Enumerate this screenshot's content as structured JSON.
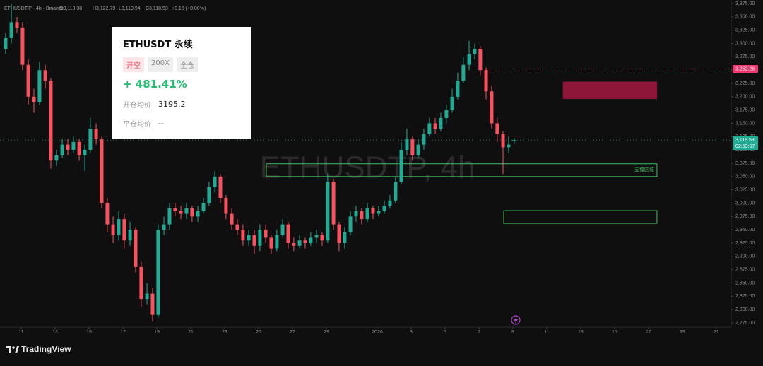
{
  "chart_data": {
    "type": "candlestick",
    "symbol_info": "ETHUSDT.P · 4h · Binance",
    "ohlc_legend": {
      "open": "O3,118.38",
      "high": "H3,122.79",
      "low": "L3,110.94",
      "close": "C3,118.53",
      "change": "+0.15 (+0.00%)"
    },
    "watermark": "ETHUSDTP, 4h",
    "brand": "TradingView",
    "up_color": "#22ab94",
    "down_color": "#f7525f",
    "grid": false,
    "x": [
      10.08,
      10.42,
      10.75,
      11.08,
      11.42,
      11.75,
      12.08,
      12.42,
      12.75,
      13.08,
      13.42,
      13.75,
      14.08,
      14.42,
      14.75,
      15.08,
      15.42,
      15.75,
      16.08,
      16.42,
      16.75,
      17.08,
      17.42,
      17.75,
      18.08,
      18.42,
      18.75,
      19.08,
      19.42,
      19.75,
      20.08,
      20.42,
      20.75,
      21.08,
      21.42,
      21.75,
      22.08,
      22.42,
      22.75,
      23.08,
      23.42,
      23.75,
      24.08,
      24.42,
      24.75,
      25.08,
      25.42,
      25.75,
      26.08,
      26.42,
      26.75,
      27.08,
      27.42,
      27.75,
      28.08,
      28.42,
      28.75,
      29.08,
      29.42,
      29.75,
      30.08,
      30.42,
      30.75,
      31.08,
      31.42,
      31.75,
      32.08,
      32.42,
      32.75,
      33.08,
      33.42,
      33.75,
      34.08,
      34.42,
      34.75,
      35.08,
      35.42,
      35.75,
      36.08,
      36.42,
      36.75,
      37.08,
      37.42,
      37.75,
      38.08,
      38.42,
      38.75,
      39.08,
      39.42,
      39.75,
      40.08
    ],
    "open": [
      3290,
      3310,
      3340,
      3330,
      3260,
      3200,
      3190,
      3250,
      3230,
      3080,
      3090,
      3110,
      3100,
      3115,
      3090,
      3100,
      3140,
      3120,
      3000,
      2960,
      2940,
      2970,
      2930,
      2950,
      2880,
      2820,
      2830,
      2790,
      2950,
      2960,
      2990,
      2985,
      2980,
      2990,
      2975,
      2985,
      3000,
      3030,
      3050,
      3010,
      2980,
      2960,
      2950,
      2930,
      2940,
      2920,
      2950,
      2935,
      2915,
      2940,
      2960,
      2925,
      2920,
      2930,
      2925,
      2935,
      2940,
      2930,
      3040,
      2960,
      2925,
      2945,
      2975,
      2985,
      2970,
      2990,
      2980,
      2985,
      2995,
      3005,
      3040,
      3100,
      3120,
      3090,
      3110,
      3130,
      3150,
      3140,
      3160,
      3175,
      3200,
      3230,
      3260,
      3280,
      3290,
      3250,
      3210,
      3150,
      3130,
      3105,
      3118.38
    ],
    "high": [
      3320,
      3375,
      3350,
      3340,
      3270,
      3215,
      3265,
      3260,
      3235,
      3100,
      3120,
      3120,
      3125,
      3120,
      3110,
      3160,
      3150,
      3125,
      3010,
      2975,
      2985,
      2980,
      2965,
      2955,
      2890,
      2850,
      2840,
      2960,
      2975,
      3000,
      3000,
      2995,
      3000,
      2995,
      2995,
      3010,
      3040,
      3060,
      3055,
      3015,
      2990,
      2970,
      2960,
      2950,
      2950,
      2960,
      2960,
      2940,
      2950,
      2970,
      2965,
      2935,
      2940,
      2935,
      2945,
      2950,
      2945,
      3055,
      3045,
      2965,
      2955,
      2985,
      2995,
      2990,
      3000,
      2995,
      2995,
      3005,
      3015,
      3050,
      3115,
      3140,
      3125,
      3120,
      3140,
      3160,
      3160,
      3170,
      3185,
      3215,
      3245,
      3275,
      3305,
      3300,
      3295,
      3255,
      3220,
      3160,
      3135,
      3125,
      3122.79
    ],
    "low": [
      3280,
      3300,
      3320,
      3250,
      3185,
      3170,
      3185,
      3215,
      3065,
      3070,
      3085,
      3090,
      3095,
      3080,
      3060,
      3095,
      3110,
      2990,
      2945,
      2925,
      2930,
      2915,
      2920,
      2870,
      2805,
      2810,
      2778,
      2785,
      2940,
      2950,
      2975,
      2970,
      2970,
      2965,
      2965,
      2980,
      2995,
      3020,
      3000,
      2970,
      2950,
      2940,
      2920,
      2920,
      2905,
      2910,
      2925,
      2905,
      2910,
      2935,
      2915,
      2910,
      2915,
      2915,
      2920,
      2925,
      2920,
      2925,
      2950,
      2910,
      2915,
      2940,
      2965,
      2960,
      2965,
      2970,
      2975,
      2980,
      2990,
      3000,
      3035,
      3090,
      3080,
      3085,
      3100,
      3125,
      3130,
      3135,
      3150,
      3170,
      3195,
      3225,
      3250,
      3270,
      3240,
      3195,
      3140,
      3115,
      3055,
      3095,
      3110.94
    ],
    "close": [
      3310,
      3340,
      3330,
      3260,
      3200,
      3190,
      3250,
      3230,
      3080,
      3090,
      3110,
      3100,
      3115,
      3090,
      3100,
      3140,
      3120,
      3000,
      2960,
      2940,
      2970,
      2930,
      2950,
      2880,
      2820,
      2830,
      2790,
      2950,
      2960,
      2990,
      2985,
      2980,
      2990,
      2975,
      2985,
      3000,
      3030,
      3050,
      3010,
      2980,
      2960,
      2950,
      2930,
      2940,
      2920,
      2950,
      2935,
      2915,
      2940,
      2960,
      2925,
      2920,
      2930,
      2925,
      2935,
      2940,
      2930,
      3040,
      2960,
      2925,
      2945,
      2975,
      2985,
      2970,
      2990,
      2980,
      2985,
      2995,
      3005,
      3040,
      3100,
      3120,
      3090,
      3110,
      3130,
      3150,
      3140,
      3160,
      3175,
      3200,
      3230,
      3260,
      3280,
      3290,
      3250,
      3210,
      3150,
      3130,
      3105,
      3110,
      3118.53
    ],
    "xlim": [
      9.75,
      52.67
    ],
    "xticks": [
      11,
      13,
      15,
      17,
      19,
      21,
      23,
      25,
      27,
      29,
      {
        "value": 32,
        "label": "2026"
      },
      {
        "value": 34,
        "label": "3"
      },
      {
        "value": 36,
        "label": "5"
      },
      {
        "value": 38,
        "label": "7"
      },
      {
        "value": 40,
        "label": "9"
      },
      {
        "value": 42,
        "label": "11"
      },
      {
        "value": 44,
        "label": "13"
      },
      {
        "value": 46,
        "label": "15"
      },
      {
        "value": 48,
        "label": "17"
      },
      {
        "value": 50,
        "label": "19"
      },
      {
        "value": 52,
        "label": "21"
      }
    ],
    "ylim": [
      2775,
      3375
    ],
    "yticks": [
      {
        "value": 2775,
        "label": "2,775.00"
      },
      {
        "value": 2800,
        "label": "2,800.00"
      },
      {
        "value": 2825,
        "label": "2,825.00"
      },
      {
        "value": 2850,
        "label": "2,850.00"
      },
      {
        "value": 2875,
        "label": "2,875.00"
      },
      {
        "value": 2900,
        "label": "2,900.00"
      },
      {
        "value": 2925,
        "label": "2,925.00"
      },
      {
        "value": 2950,
        "label": "2,950.00"
      },
      {
        "value": 2975,
        "label": "2,975.00"
      },
      {
        "value": 3000,
        "label": "3,000.00"
      },
      {
        "value": 3025,
        "label": "3,025.00"
      },
      {
        "value": 3050,
        "label": "3,050.00"
      },
      {
        "value": 3075,
        "label": "3,075.00"
      },
      {
        "value": 3100,
        "label": "3,100.00"
      },
      {
        "value": 3125,
        "label": "3,125.00"
      },
      {
        "value": 3150,
        "label": "3,150.00"
      },
      {
        "value": 3175,
        "label": "3,175.00"
      },
      {
        "value": 3200,
        "label": "3,200.00"
      },
      {
        "value": 3225,
        "label": "3,225.00"
      },
      {
        "value": 3250,
        "label": "3,250.00"
      },
      {
        "value": 3275,
        "label": "3,275.00"
      },
      {
        "value": 3300,
        "label": "3,300.00"
      },
      {
        "value": 3325,
        "label": "3,325.00"
      },
      {
        "value": 3350,
        "label": "3,350.00"
      },
      {
        "value": 3375,
        "label": "3,375.00"
      }
    ],
    "price_lines": [
      {
        "value": 3252.26,
        "label": "3,252.26",
        "color": "#f23670",
        "style": "dashed",
        "x_start": 37.96
      },
      {
        "value": 3118.53,
        "label": "3,118.53",
        "timer": "02:53:57",
        "color": "#22ab94",
        "style": "dotted",
        "x_start": 9.75
      }
    ],
    "zones": [
      {
        "top": 3228,
        "bottom": 3196,
        "x_start": 42.96,
        "x_end": 48.5,
        "kind": "fill",
        "color": "#8e1739"
      },
      {
        "top": 3074,
        "bottom": 3050,
        "x_start": 25.46,
        "x_end": 48.5,
        "kind": "outline",
        "color": "#3fbf5a",
        "label": "支撑区域"
      },
      {
        "top": 2986,
        "bottom": 2962,
        "x_start": 39.46,
        "x_end": 48.5,
        "kind": "outline",
        "color": "#3fbf5a"
      }
    ]
  },
  "position_card": {
    "symbol": "ETHUSDT 永续",
    "tags": [
      "开空",
      "200X",
      "全仓"
    ],
    "pnl": "+ 481.41%",
    "rows": [
      [
        "开仓均价",
        "3195.2"
      ],
      [
        "平仓均价",
        "--"
      ]
    ]
  }
}
